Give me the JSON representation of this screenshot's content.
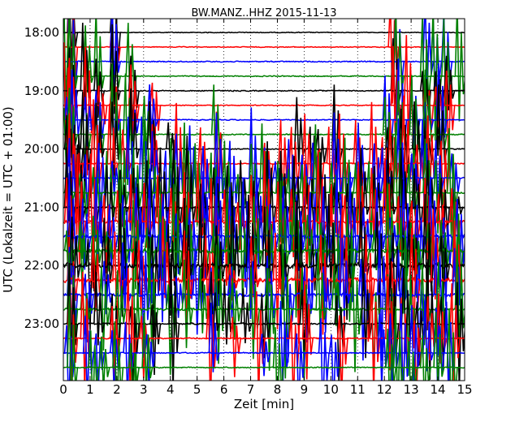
{
  "chart_data": {
    "type": "line",
    "title": "BW.MANZ..HHZ 2015-11-13",
    "xlabel": "Zeit  [min]",
    "ylabel": "UTC (Lokalzeit = UTC + 01:00)",
    "xlim": [
      0,
      15
    ],
    "x_ticks": [
      "0",
      "1",
      "2",
      "3",
      "4",
      "5",
      "6",
      "7",
      "8",
      "9",
      "10",
      "11",
      "12",
      "13",
      "14",
      "15"
    ],
    "y_ticks": [
      "18:00",
      "19:00",
      "20:00",
      "21:00",
      "22:00",
      "23:00"
    ],
    "grid": true,
    "trace_colors": [
      "#000000",
      "#ff0000",
      "#0000ff",
      "#008000"
    ],
    "trace_starts": [
      "18:00",
      "18:15",
      "18:30",
      "18:45",
      "19:00",
      "19:15",
      "19:30",
      "19:45",
      "20:00",
      "20:15",
      "20:30",
      "20:45",
      "21:00",
      "21:15",
      "21:30",
      "21:45",
      "22:00",
      "22:15",
      "22:30",
      "22:45",
      "23:00",
      "23:15",
      "23:30",
      "23:45"
    ],
    "trace_amplitude": [
      0.3,
      0.3,
      0.4,
      0.35,
      0.4,
      0.3,
      0.35,
      0.4,
      0.4,
      0.45,
      0.5,
      0.5,
      0.8,
      1.0,
      1.2,
      1.5,
      1.8,
      1.5,
      1.2,
      0.8,
      0.6,
      0.45,
      0.4,
      0.35
    ],
    "spike_times_min": [
      [
        0.3,
        1.9
      ],
      [
        0.3,
        1.9,
        12.3
      ],
      [
        0.3,
        1.9,
        12.5,
        13.6,
        13.9,
        14.3
      ],
      [
        0.1,
        0.3,
        0.9,
        1.3,
        1.9,
        2.5,
        12.5,
        13.5,
        13.9,
        14.3,
        14.8
      ],
      [
        0.1,
        0.3,
        0.8,
        1.3,
        1.9,
        2.6,
        12.4,
        13.5,
        14.0,
        14.4
      ],
      [
        0.1,
        0.3,
        0.9,
        1.4,
        1.9,
        2.6,
        3.4,
        12.4,
        12.9,
        13.6,
        14.0,
        14.4
      ],
      [
        0.2,
        0.4,
        0.9,
        1.3,
        1.9,
        2.6,
        3.3,
        12.1,
        12.6,
        13.1,
        13.6,
        14.1
      ],
      [
        0.1,
        0.3,
        0.8,
        1.3,
        1.9,
        2.4,
        3.1,
        5.7,
        12.1,
        12.6,
        13.1,
        13.6,
        14.1
      ],
      [
        0.2,
        0.5,
        0.8,
        1.3,
        1.9,
        2.6,
        3.3,
        4.0,
        8.8,
        9.3,
        9.6,
        10.2,
        12.2,
        12.7,
        13.2,
        13.6,
        14.1
      ],
      [
        0.3,
        0.5,
        1.2,
        1.8,
        2.3,
        3.4,
        4.3,
        5.2,
        5.8,
        7.6,
        8.2,
        8.6,
        9.1,
        9.5,
        10.0,
        10.4,
        11.0,
        11.6,
        12.0,
        12.3,
        12.8,
        13.3,
        13.7,
        14.2
      ],
      [
        0.3,
        0.9,
        1.4,
        1.9,
        2.5,
        3.0,
        3.4,
        3.9,
        4.3,
        4.8,
        5.3,
        5.8,
        6.3,
        7.1,
        7.6,
        8.0,
        8.5,
        9.0,
        9.4,
        10.2,
        10.6,
        11.1,
        11.7,
        12.0,
        12.6,
        13.1,
        13.5,
        14.0,
        14.6
      ],
      [
        0.2,
        0.7,
        1.2,
        1.7,
        2.2,
        2.7,
        3.1,
        3.5,
        4.1,
        4.6,
        5.0,
        5.6,
        6.1,
        6.6,
        7.1,
        7.5,
        8.1,
        8.5,
        9.0,
        9.5,
        10.1,
        10.6,
        11.0,
        11.5,
        12.1,
        12.5,
        13.0,
        13.6,
        14.0,
        14.5
      ],
      [
        0.2,
        0.6,
        1.1,
        1.7,
        2.2,
        2.7,
        3.2,
        3.7,
        4.2,
        4.7,
        5.2,
        5.7,
        6.2,
        6.7,
        7.2,
        7.7,
        8.2,
        8.7,
        9.2,
        9.7,
        10.2,
        10.7,
        11.2,
        11.7,
        12.2,
        12.7,
        13.2,
        13.7,
        14.2,
        14.7
      ],
      [
        0.2,
        0.6,
        1.1,
        1.6,
        2.1,
        2.6,
        3.1,
        3.6,
        4.1,
        4.6,
        5.1,
        5.6,
        6.1,
        6.6,
        7.1,
        7.6,
        8.1,
        8.6,
        9.1,
        9.6,
        10.1,
        10.6,
        11.1,
        11.6,
        12.1,
        12.6,
        13.1,
        13.6,
        14.1,
        14.6
      ],
      [
        0.3,
        0.8,
        1.3,
        1.8,
        2.3,
        2.8,
        3.3,
        3.8,
        4.3,
        4.8,
        5.3,
        5.8,
        6.3,
        6.8,
        7.3,
        7.8,
        8.3,
        8.8,
        9.3,
        9.8,
        10.3,
        10.8,
        11.3,
        11.8,
        12.3,
        12.8,
        13.3,
        13.8,
        14.3,
        14.8
      ],
      [
        0.2,
        0.7,
        1.2,
        1.7,
        2.2,
        2.7,
        3.2,
        3.7,
        4.2,
        4.7,
        5.2,
        5.7,
        6.2,
        6.7,
        7.2,
        7.7,
        8.2,
        8.7,
        9.2,
        9.7,
        10.2,
        10.7,
        11.2,
        11.7,
        12.2,
        12.7,
        13.2,
        13.7,
        14.2,
        14.7
      ],
      [
        0.4,
        1.0,
        1.6,
        2.2,
        2.8,
        3.4,
        4.0,
        4.6,
        5.2,
        5.8,
        6.4,
        7.0,
        7.6,
        8.2,
        8.8,
        9.4,
        10.0,
        10.6,
        11.2,
        11.8,
        12.4,
        13.0,
        13.6,
        14.2
      ],
      [
        0.3,
        1.2,
        2.0,
        2.9,
        3.8,
        4.6,
        5.4,
        6.3,
        7.1,
        8.0,
        8.8,
        9.7,
        10.5,
        11.4,
        12.2,
        13.1,
        13.9,
        14.7
      ],
      [
        0.3,
        0.9,
        1.6,
        2.3,
        3.0,
        3.7,
        4.3,
        5.0,
        5.6,
        6.3,
        7.0,
        7.7,
        8.4,
        9.1,
        9.8,
        10.5,
        11.2,
        11.9,
        12.6,
        13.3,
        14.0,
        14.7
      ],
      [
        0.3,
        0.8,
        1.5,
        2.1,
        2.7,
        3.3,
        4.0,
        4.6,
        5.2,
        5.8,
        6.4,
        7.1,
        7.7,
        8.3,
        9.0,
        9.6,
        10.2,
        10.9,
        11.6,
        12.2,
        12.9,
        13.5,
        14.1,
        14.8
      ],
      [
        0.3,
        1.3,
        1.9,
        2.6,
        3.4,
        4.1,
        5.6,
        6.1,
        6.8,
        7.5,
        9.0,
        10.3,
        11.3,
        12.3,
        12.8,
        13.3,
        13.7,
        14.2,
        14.8
      ],
      [
        0.3,
        0.8,
        1.9,
        2.5,
        3.0,
        5.5,
        6.4,
        7.3,
        8.6,
        9.1,
        10.4,
        11.6,
        12.2,
        12.7,
        13.2,
        13.7,
        14.1,
        14.6
      ],
      [
        0.2,
        0.9,
        1.3,
        1.9,
        2.4,
        3.2,
        5.6,
        7.5,
        8.2,
        8.8,
        9.7,
        10.1,
        11.9,
        12.3,
        12.7,
        13.1,
        13.6,
        14.0,
        14.4
      ],
      [
        0.3,
        1.1,
        1.5,
        2.0,
        2.6,
        3.1,
        8.0,
        12.2,
        12.5,
        13.0,
        13.5,
        14.0,
        14.5
      ]
    ]
  }
}
